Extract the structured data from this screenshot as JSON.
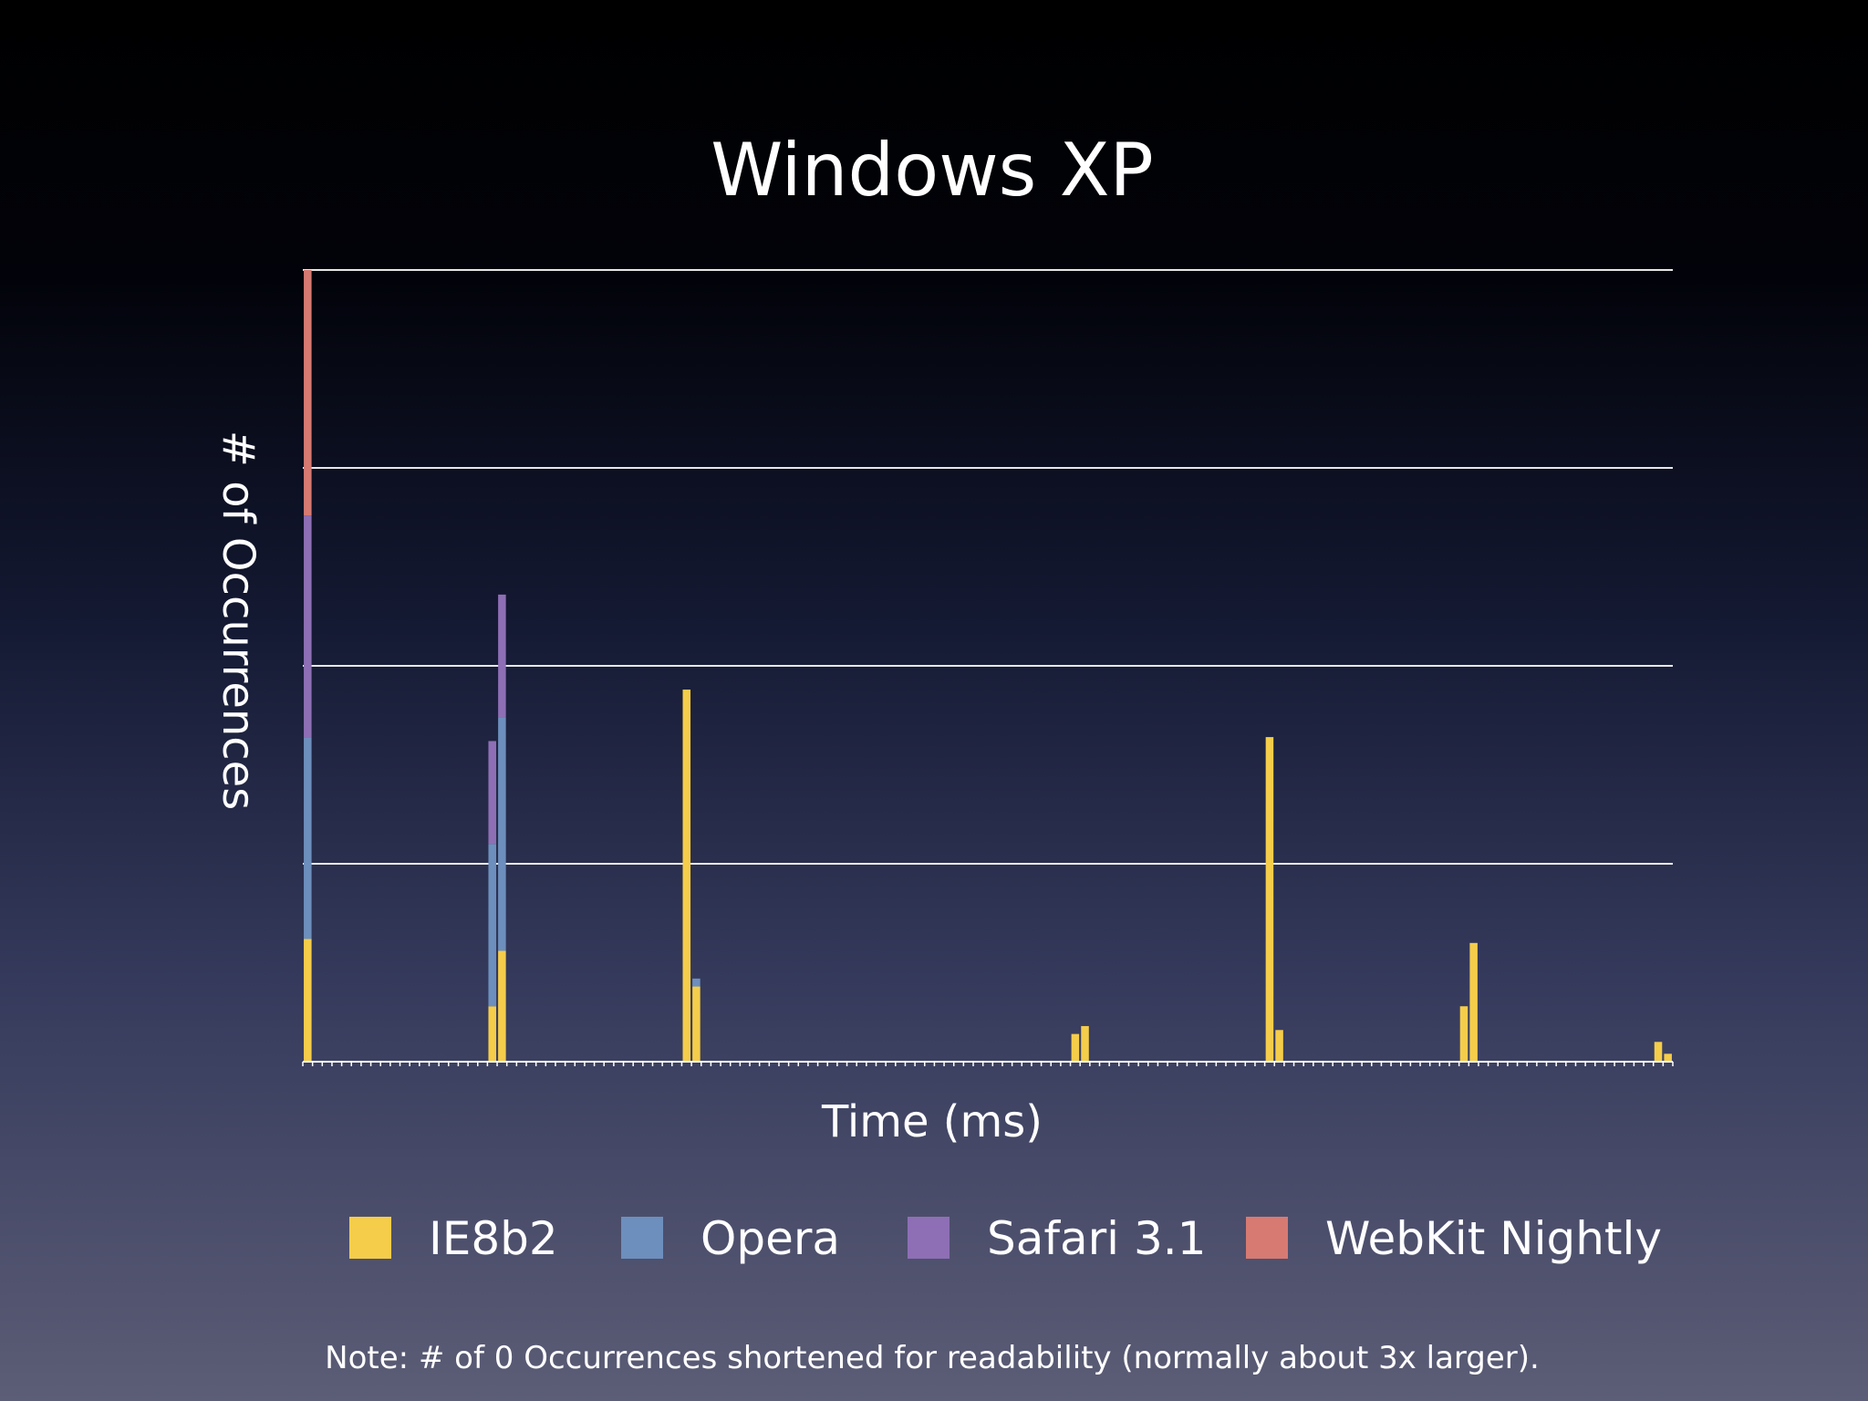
{
  "chart_data": {
    "type": "bar",
    "stacked": true,
    "title": "Windows XP",
    "xlabel": "Time (ms)",
    "ylabel": "# of Occurrences",
    "grid": true,
    "legend_position": "bottom",
    "ylim": [
      0,
      200
    ],
    "x_bins": 141,
    "series": [
      {
        "name": "IE8b2",
        "color": "#f5cd4a",
        "values": {
          "0": 31,
          "19": 14,
          "20": 28,
          "39": 94,
          "40": 19,
          "79": 7,
          "80": 9,
          "99": 82,
          "100": 8,
          "119": 14,
          "120": 30,
          "139": 5,
          "140": 2
        }
      },
      {
        "name": "Opera",
        "color": "#6d8fbd",
        "values": {
          "0": 51,
          "19": 41,
          "20": 59,
          "40": 2
        }
      },
      {
        "name": "Safari 3.1",
        "color": "#8e6fb5",
        "values": {
          "0": 56,
          "19": 26,
          "20": 31
        }
      },
      {
        "name": "WebKit Nightly",
        "color": "#d77a72",
        "values": {
          "0": 62
        }
      }
    ]
  },
  "note": "Note: # of 0 Occurrences shortened for readability (normally about 3x larger)."
}
